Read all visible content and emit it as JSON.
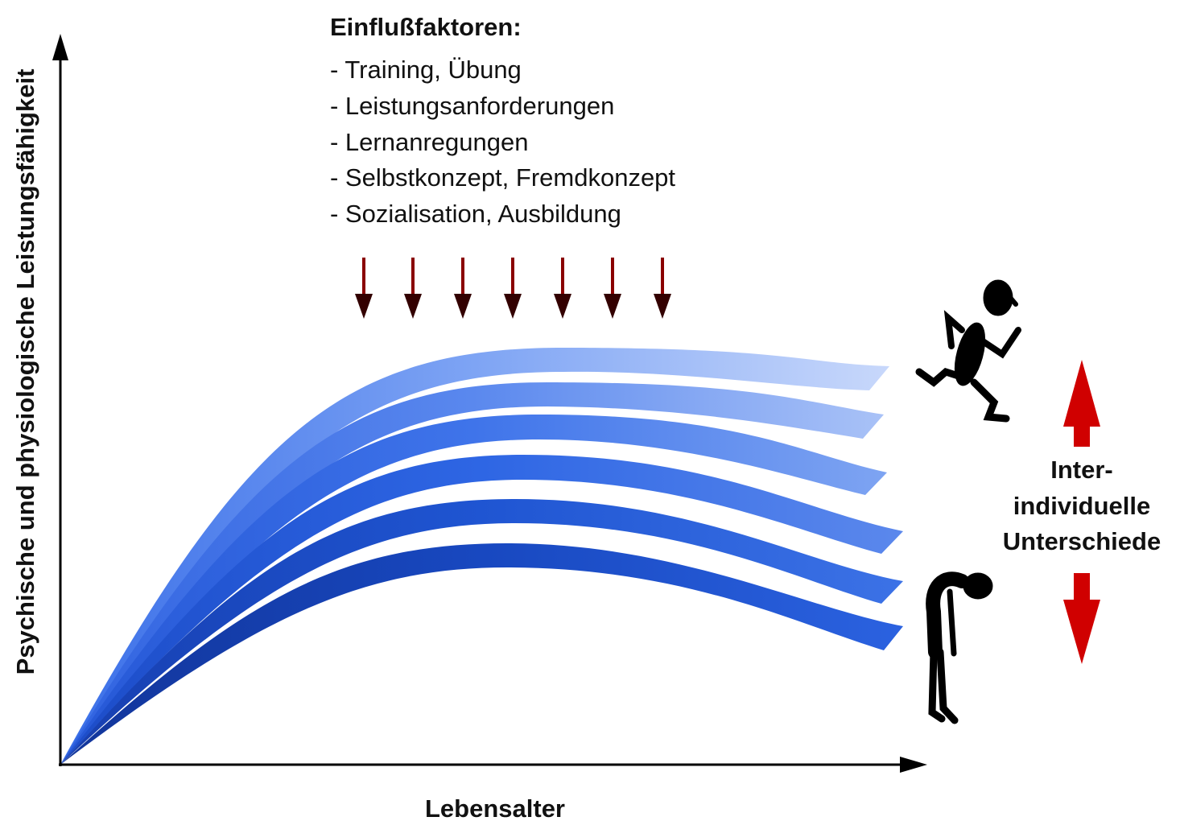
{
  "y_axis_label": "Psychische und physiologische Leistungsfähigkeit",
  "x_axis_label": "Lebensalter",
  "factors": {
    "title": "Einflußfaktoren:",
    "items": [
      "- Training, Übung",
      "- Leistungsanforderungen",
      "- Lernanregungen",
      "- Selbstkonzept, Fremdkonzept",
      "- Sozialisation, Ausbildung"
    ]
  },
  "differences_label": [
    "Inter-",
    "individuelle",
    "Unterschiede"
  ]
}
